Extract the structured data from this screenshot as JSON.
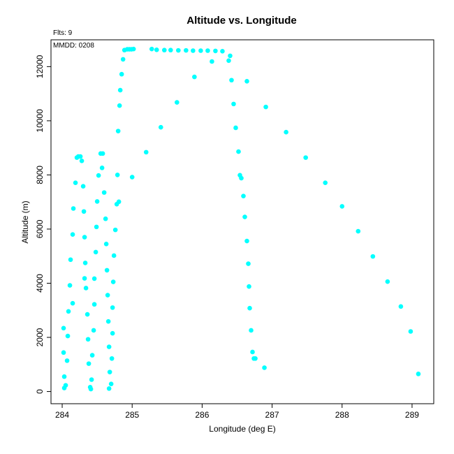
{
  "chart_data": {
    "type": "scatter",
    "title": "Altitude vs. Longitude",
    "xlabel": "Longitude (deg E)",
    "ylabel": "Altitude (m)",
    "annotations": [
      "Flts: 9",
      "MMDD: 0208"
    ],
    "xlim": [
      283.84,
      289.31
    ],
    "ylim": [
      -450,
      12990
    ],
    "x_ticks": [
      284,
      285,
      286,
      287,
      288,
      289
    ],
    "y_ticks": [
      0,
      2000,
      4000,
      6000,
      8000,
      10000,
      12000
    ],
    "grid": false,
    "marker_color": "#00ffff",
    "points": [
      [
        284.03,
        130
      ],
      [
        284.05,
        230
      ],
      [
        284.03,
        550
      ],
      [
        284.02,
        1440
      ],
      [
        284.07,
        1140
      ],
      [
        284.08,
        2050
      ],
      [
        284.02,
        2340
      ],
      [
        284.09,
        2960
      ],
      [
        284.15,
        3260
      ],
      [
        284.11,
        3920
      ],
      [
        284.12,
        4870
      ],
      [
        284.15,
        5800
      ],
      [
        284.16,
        6760
      ],
      [
        284.19,
        7710
      ],
      [
        284.21,
        8640
      ],
      [
        284.23,
        8680
      ],
      [
        284.26,
        8680
      ],
      [
        284.28,
        8520
      ],
      [
        284.3,
        7580
      ],
      [
        284.31,
        6650
      ],
      [
        284.32,
        5700
      ],
      [
        284.33,
        4750
      ],
      [
        284.32,
        4180
      ],
      [
        284.34,
        3820
      ],
      [
        284.36,
        2850
      ],
      [
        284.37,
        1930
      ],
      [
        284.38,
        1030
      ],
      [
        284.4,
        160
      ],
      [
        284.41,
        90
      ],
      [
        284.42,
        440
      ],
      [
        284.43,
        1340
      ],
      [
        284.45,
        2260
      ],
      [
        284.46,
        3220
      ],
      [
        284.46,
        4170
      ],
      [
        284.48,
        5150
      ],
      [
        284.49,
        6080
      ],
      [
        284.5,
        7020
      ],
      [
        284.52,
        7980
      ],
      [
        284.55,
        8790
      ],
      [
        284.58,
        8790
      ],
      [
        284.57,
        8260
      ],
      [
        284.6,
        7350
      ],
      [
        284.62,
        6380
      ],
      [
        284.63,
        5450
      ],
      [
        284.64,
        4480
      ],
      [
        284.65,
        3560
      ],
      [
        284.66,
        2590
      ],
      [
        284.67,
        1650
      ],
      [
        284.68,
        720
      ],
      [
        284.67,
        110
      ],
      [
        284.7,
        280
      ],
      [
        284.71,
        1220
      ],
      [
        284.72,
        2150
      ],
      [
        284.72,
        3100
      ],
      [
        284.73,
        4050
      ],
      [
        284.74,
        5020
      ],
      [
        284.76,
        5970
      ],
      [
        284.78,
        6920
      ],
      [
        284.81,
        7010
      ],
      [
        284.79,
        8000
      ],
      [
        284.8,
        9620
      ],
      [
        284.82,
        10560
      ],
      [
        284.83,
        11130
      ],
      [
        284.85,
        11720
      ],
      [
        284.87,
        12270
      ],
      [
        284.89,
        12610
      ],
      [
        284.93,
        12640
      ],
      [
        284.96,
        12640
      ],
      [
        284.99,
        12640
      ],
      [
        285.02,
        12650
      ],
      [
        285.0,
        7920
      ],
      [
        285.2,
        8840
      ],
      [
        285.28,
        12650
      ],
      [
        285.35,
        12620
      ],
      [
        285.41,
        9760
      ],
      [
        285.46,
        12610
      ],
      [
        285.55,
        12610
      ],
      [
        285.64,
        10680
      ],
      [
        285.66,
        12600
      ],
      [
        285.77,
        12600
      ],
      [
        285.87,
        12590
      ],
      [
        285.89,
        11620
      ],
      [
        285.98,
        12590
      ],
      [
        286.08,
        12590
      ],
      [
        286.14,
        12190
      ],
      [
        286.19,
        12580
      ],
      [
        286.29,
        12570
      ],
      [
        286.38,
        12220
      ],
      [
        286.4,
        12400
      ],
      [
        286.42,
        11500
      ],
      [
        286.45,
        10620
      ],
      [
        286.48,
        9740
      ],
      [
        286.52,
        8860
      ],
      [
        286.54,
        7990
      ],
      [
        286.56,
        7880
      ],
      [
        286.59,
        7220
      ],
      [
        286.61,
        6450
      ],
      [
        286.64,
        5560
      ],
      [
        286.66,
        4720
      ],
      [
        286.67,
        3880
      ],
      [
        286.68,
        3080
      ],
      [
        286.7,
        2260
      ],
      [
        286.72,
        1460
      ],
      [
        286.74,
        1220
      ],
      [
        286.76,
        1220
      ],
      [
        286.64,
        11460
      ],
      [
        286.91,
        10510
      ],
      [
        286.89,
        880
      ],
      [
        287.2,
        9580
      ],
      [
        287.48,
        8640
      ],
      [
        287.76,
        7710
      ],
      [
        288.0,
        6840
      ],
      [
        288.23,
        5920
      ],
      [
        288.44,
        4990
      ],
      [
        288.65,
        4060
      ],
      [
        288.84,
        3140
      ],
      [
        288.98,
        2220
      ],
      [
        289.09,
        650
      ]
    ]
  }
}
